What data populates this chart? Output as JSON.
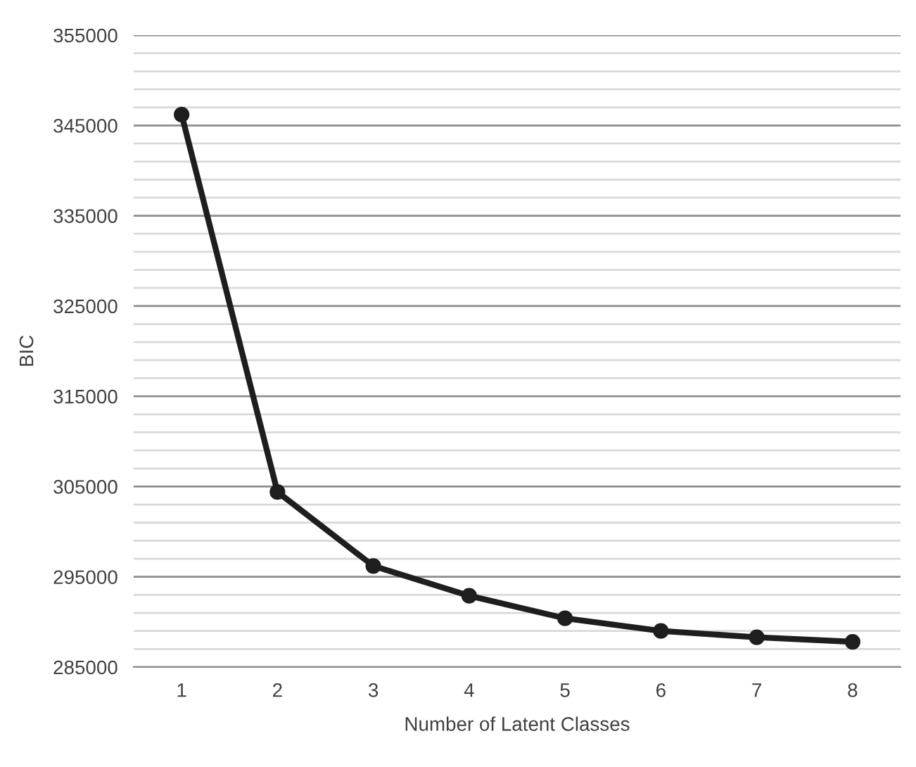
{
  "chart_data": {
    "type": "line",
    "xlabel": "Number of Latent Classes",
    "ylabel": "BIC",
    "categories": [
      "1",
      "2",
      "3",
      "4",
      "5",
      "6",
      "7",
      "8"
    ],
    "series": [
      {
        "color": "#1e1e1e",
        "values": [
          346200,
          304400,
          296200,
          292900,
          290400,
          289000,
          288300,
          287800
        ]
      }
    ],
    "ylim": [
      285000,
      355000
    ],
    "yticks": [
      285000,
      {
        "value": 287000,
        "label": null
      },
      {
        "value": 289000,
        "label": null
      },
      {
        "value": 291000,
        "label": null
      },
      {
        "value": 293000,
        "label": null
      },
      295000,
      {
        "value": 297000,
        "label": null
      },
      {
        "value": 299000,
        "label": null
      },
      {
        "value": 301000,
        "label": null
      },
      {
        "value": 303000,
        "label": null
      },
      305000,
      {
        "value": 307000,
        "label": null
      },
      {
        "value": 309000,
        "label": null
      },
      {
        "value": 311000,
        "label": null
      },
      {
        "value": 313000,
        "label": null
      },
      315000,
      {
        "value": 317000,
        "label": null
      },
      {
        "value": 319000,
        "label": null
      },
      {
        "value": 321000,
        "label": null
      },
      {
        "value": 323000,
        "label": null
      },
      325000,
      {
        "value": 327000,
        "label": null
      },
      {
        "value": 329000,
        "label": null
      },
      {
        "value": 331000,
        "label": null
      },
      {
        "value": 333000,
        "label": null
      },
      335000,
      {
        "value": 337000,
        "label": null
      },
      {
        "value": 339000,
        "label": null
      },
      {
        "value": 341000,
        "label": null
      },
      {
        "value": 343000,
        "label": null
      },
      345000,
      {
        "value": 347000,
        "label": null
      },
      {
        "value": 349000,
        "label": null
      },
      {
        "value": 351000,
        "label": null
      },
      {
        "value": 353000,
        "label": null
      },
      355000
    ],
    "grid": "y",
    "marker": "circle",
    "line_style": "solid"
  }
}
